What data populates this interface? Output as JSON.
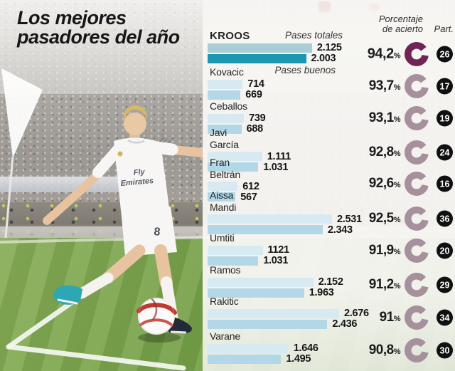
{
  "title": {
    "line1": "Los mejores",
    "line2": "pasadores del año"
  },
  "headers": {
    "accuracy_line1": "Porcentaje",
    "accuracy_line2": "de acierto",
    "participation": "Part."
  },
  "legend": {
    "total": "Pases totales",
    "good": "Pases buenos"
  },
  "labels": {
    "percent_sign": "%"
  },
  "colors": {
    "bar_totales_hi": "#a9cdd6",
    "bar_buenos_hi": "#1b97b2",
    "bar_totales": "#d8eaf1",
    "bar_buenos": "#b2d7e7",
    "ring_hi": "#6f2456",
    "ring": "#a5909b",
    "badge_bg": "#101010"
  },
  "chart_data": {
    "type": "bar",
    "orientation": "horizontal",
    "title": "Los mejores pasadores del año",
    "legend": [
      "Pases totales",
      "Pases buenos"
    ],
    "categories": [
      "Kroos",
      "Kovacic",
      "Ceballos",
      "Javi García",
      "Fran Beltrán",
      "Aissa Mandi",
      "Umtiti",
      "Ramos",
      "Rakitic",
      "Varane"
    ],
    "series": [
      {
        "name": "Pases totales",
        "values": [
          2125,
          714,
          739,
          1111,
          612,
          2531,
          1121,
          2152,
          2676,
          1646
        ]
      },
      {
        "name": "Pases buenos",
        "values": [
          2003,
          669,
          688,
          1031,
          567,
          2343,
          1031,
          1963,
          2436,
          1495
        ]
      }
    ],
    "accuracy_percent": [
      94.2,
      93.7,
      93.1,
      92.8,
      92.6,
      92.5,
      91.9,
      91.2,
      91,
      90.8
    ],
    "participation": [
      26,
      17,
      19,
      24,
      16,
      36,
      20,
      29,
      34,
      30
    ],
    "rows": [
      {
        "name_lines": [
          "KROOS"
        ],
        "totales": "2.125",
        "totales_num": 2125,
        "buenos": "2.003",
        "buenos_num": 2003,
        "pct": "94,2",
        "pct_num": 94.2,
        "part": 26,
        "highlight": true
      },
      {
        "name_lines": [
          "Kovacic"
        ],
        "totales": "714",
        "totales_num": 714,
        "buenos": "669",
        "buenos_num": 669,
        "pct": "93,7",
        "pct_num": 93.7,
        "part": 17,
        "highlight": false
      },
      {
        "name_lines": [
          "Ceballos"
        ],
        "totales": "739",
        "totales_num": 739,
        "buenos": "688",
        "buenos_num": 688,
        "pct": "93,1",
        "pct_num": 93.1,
        "part": 19,
        "highlight": false
      },
      {
        "name_lines": [
          "Javi",
          "García"
        ],
        "totales": "1.111",
        "totales_num": 1111,
        "buenos": "1.031",
        "buenos_num": 1031,
        "pct": "92,8",
        "pct_num": 92.8,
        "part": 24,
        "highlight": false
      },
      {
        "name_lines": [
          "Fran",
          "Beltrán"
        ],
        "totales": "612",
        "totales_num": 612,
        "buenos": "567",
        "buenos_num": 567,
        "pct": "92,6",
        "pct_num": 92.6,
        "part": 16,
        "highlight": false
      },
      {
        "name_lines": [
          "Aissa",
          "Mandi"
        ],
        "totales": "2.531",
        "totales_num": 2531,
        "buenos": "2.343",
        "buenos_num": 2343,
        "pct": "92,5",
        "pct_num": 92.5,
        "part": 36,
        "highlight": false
      },
      {
        "name_lines": [
          "Umtiti"
        ],
        "totales": "1121",
        "totales_num": 1121,
        "buenos": "1.031",
        "buenos_num": 1031,
        "pct": "91,9",
        "pct_num": 91.9,
        "part": 20,
        "highlight": false
      },
      {
        "name_lines": [
          "Ramos"
        ],
        "totales": "2.152",
        "totales_num": 2152,
        "buenos": "1.963",
        "buenos_num": 1963,
        "pct": "91,2",
        "pct_num": 91.2,
        "part": 29,
        "highlight": false
      },
      {
        "name_lines": [
          "Rakitic"
        ],
        "totales": "2.676",
        "totales_num": 2676,
        "buenos": "2.436",
        "buenos_num": 2436,
        "pct": "91",
        "pct_num": 91,
        "part": 34,
        "highlight": false
      },
      {
        "name_lines": [
          "Varane"
        ],
        "totales": "1.646",
        "totales_num": 1646,
        "buenos": "1.495",
        "buenos_num": 1495,
        "pct": "90,8",
        "pct_num": 90.8,
        "part": 30,
        "highlight": false
      }
    ]
  }
}
